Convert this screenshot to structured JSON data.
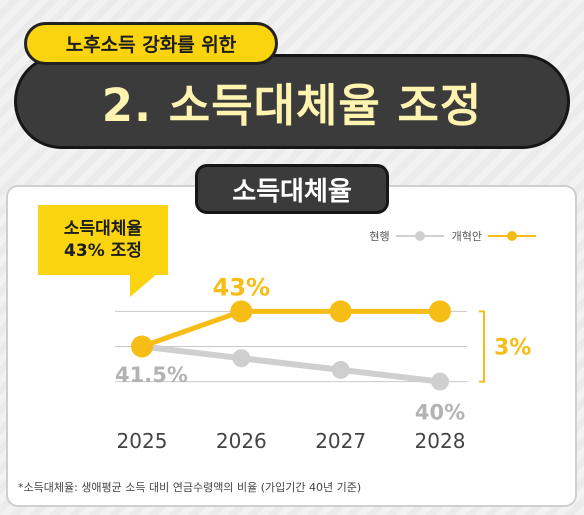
{
  "header": {
    "subtitle": "노후소득 강화를 위한",
    "title": "2. 소득대체율 조정"
  },
  "tab_label": "소득대체율",
  "callout": {
    "line1": "소득대체율",
    "line2": "43% 조정"
  },
  "footnote": "*소득대체율: 생애평균 소득 대비 연금수령액의 비율 (가입기간 40년 기준)",
  "colors": {
    "current": "#cfcfcf",
    "reform": "#f6bd16",
    "accent": "#f9d40f",
    "dark": "#3b3b3b"
  },
  "chart_data": {
    "type": "line",
    "x": [
      "2025",
      "2026",
      "2027",
      "2028"
    ],
    "ylim": [
      39,
      44
    ],
    "legend_position": "top-right",
    "series": [
      {
        "name": "현행",
        "values": [
          41.5,
          41.0,
          40.5,
          40.0
        ]
      },
      {
        "name": "개혁안",
        "values": [
          41.5,
          43.0,
          43.0,
          43.0
        ]
      }
    ],
    "annotations": {
      "start": "41.5%",
      "reform_end": "43%",
      "current_end": "40%",
      "difference": "3%"
    }
  }
}
